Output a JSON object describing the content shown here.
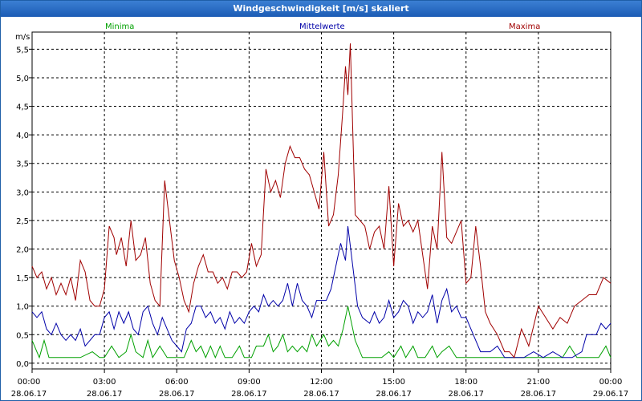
{
  "window": {
    "title": "Windgeschwindigkeit [m/s] skaliert"
  },
  "chart_data": {
    "type": "line",
    "ylabel": "m/s",
    "ylim": [
      -0.1,
      5.8
    ],
    "yticks": [
      "0,0",
      "0,5",
      "1,0",
      "1,5",
      "2,0",
      "2,5",
      "3,0",
      "3,5",
      "4,0",
      "4,5",
      "5,0",
      "5,5"
    ],
    "xticks": [
      {
        "time": "00:00",
        "date": "28.06.17"
      },
      {
        "time": "03:00",
        "date": "28.06.17"
      },
      {
        "time": "06:00",
        "date": "28.06.17"
      },
      {
        "time": "09:00",
        "date": "28.06.17"
      },
      {
        "time": "12:00",
        "date": "28.06.17"
      },
      {
        "time": "15:00",
        "date": "28.06.17"
      },
      {
        "time": "18:00",
        "date": "28.06.17"
      },
      {
        "time": "21:00",
        "date": "28.06.17"
      },
      {
        "time": "00:00",
        "date": "29.06.17"
      }
    ],
    "x_hours_range": [
      0,
      24
    ],
    "series": [
      {
        "name": "Minima",
        "color": "#00a000",
        "points": [
          [
            0,
            0.4
          ],
          [
            0.3,
            0.1
          ],
          [
            0.5,
            0.4
          ],
          [
            0.7,
            0.1
          ],
          [
            1,
            0.1
          ],
          [
            1.5,
            0.1
          ],
          [
            2,
            0.1
          ],
          [
            2.5,
            0.2
          ],
          [
            2.8,
            0.1
          ],
          [
            3,
            0.1
          ],
          [
            3.3,
            0.3
          ],
          [
            3.6,
            0.1
          ],
          [
            3.9,
            0.2
          ],
          [
            4.1,
            0.5
          ],
          [
            4.3,
            0.2
          ],
          [
            4.6,
            0.1
          ],
          [
            4.8,
            0.4
          ],
          [
            5.0,
            0.1
          ],
          [
            5.3,
            0.3
          ],
          [
            5.6,
            0.1
          ],
          [
            6.0,
            0.1
          ],
          [
            6.3,
            0.1
          ],
          [
            6.6,
            0.4
          ],
          [
            6.8,
            0.2
          ],
          [
            7.0,
            0.3
          ],
          [
            7.2,
            0.1
          ],
          [
            7.4,
            0.3
          ],
          [
            7.6,
            0.1
          ],
          [
            7.8,
            0.3
          ],
          [
            8.0,
            0.1
          ],
          [
            8.3,
            0.1
          ],
          [
            8.6,
            0.3
          ],
          [
            8.8,
            0.1
          ],
          [
            9.1,
            0.1
          ],
          [
            9.3,
            0.3
          ],
          [
            9.6,
            0.3
          ],
          [
            9.8,
            0.5
          ],
          [
            10.0,
            0.2
          ],
          [
            10.2,
            0.3
          ],
          [
            10.4,
            0.5
          ],
          [
            10.6,
            0.2
          ],
          [
            10.8,
            0.3
          ],
          [
            11.0,
            0.2
          ],
          [
            11.2,
            0.3
          ],
          [
            11.4,
            0.2
          ],
          [
            11.6,
            0.5
          ],
          [
            11.8,
            0.3
          ],
          [
            12.1,
            0.5
          ],
          [
            12.3,
            0.3
          ],
          [
            12.5,
            0.4
          ],
          [
            12.7,
            0.3
          ],
          [
            12.9,
            0.6
          ],
          [
            13.1,
            1.0
          ],
          [
            13.4,
            0.4
          ],
          [
            13.7,
            0.1
          ],
          [
            14.0,
            0.1
          ],
          [
            14.5,
            0.1
          ],
          [
            14.8,
            0.2
          ],
          [
            15.0,
            0.1
          ],
          [
            15.3,
            0.3
          ],
          [
            15.5,
            0.1
          ],
          [
            15.8,
            0.3
          ],
          [
            16.0,
            0.1
          ],
          [
            16.3,
            0.1
          ],
          [
            16.6,
            0.3
          ],
          [
            16.8,
            0.1
          ],
          [
            17.0,
            0.2
          ],
          [
            17.3,
            0.3
          ],
          [
            17.6,
            0.1
          ],
          [
            17.9,
            0.1
          ],
          [
            18.2,
            0.1
          ],
          [
            18.5,
            0.1
          ],
          [
            19,
            0.1
          ],
          [
            19.5,
            0.1
          ],
          [
            20,
            0.1
          ],
          [
            20.5,
            0.1
          ],
          [
            21,
            0.1
          ],
          [
            21.5,
            0.1
          ],
          [
            22,
            0.1
          ],
          [
            22.3,
            0.3
          ],
          [
            22.6,
            0.1
          ],
          [
            23,
            0.1
          ],
          [
            23.5,
            0.1
          ],
          [
            23.8,
            0.3
          ],
          [
            24,
            0.1
          ]
        ]
      },
      {
        "name": "Mittelwerte",
        "color": "#0000a8",
        "points": [
          [
            0,
            0.9
          ],
          [
            0.2,
            0.8
          ],
          [
            0.4,
            0.9
          ],
          [
            0.6,
            0.6
          ],
          [
            0.8,
            0.5
          ],
          [
            1.0,
            0.7
          ],
          [
            1.2,
            0.5
          ],
          [
            1.4,
            0.4
          ],
          [
            1.6,
            0.5
          ],
          [
            1.8,
            0.4
          ],
          [
            2.0,
            0.6
          ],
          [
            2.2,
            0.3
          ],
          [
            2.4,
            0.4
          ],
          [
            2.6,
            0.5
          ],
          [
            2.8,
            0.5
          ],
          [
            3.0,
            0.8
          ],
          [
            3.2,
            0.9
          ],
          [
            3.4,
            0.6
          ],
          [
            3.6,
            0.9
          ],
          [
            3.8,
            0.7
          ],
          [
            4.0,
            0.9
          ],
          [
            4.2,
            0.6
          ],
          [
            4.4,
            0.5
          ],
          [
            4.6,
            0.9
          ],
          [
            4.8,
            1.0
          ],
          [
            5.0,
            0.7
          ],
          [
            5.2,
            0.5
          ],
          [
            5.4,
            0.8
          ],
          [
            5.6,
            0.6
          ],
          [
            5.8,
            0.4
          ],
          [
            6.0,
            0.3
          ],
          [
            6.2,
            0.2
          ],
          [
            6.4,
            0.6
          ],
          [
            6.6,
            0.7
          ],
          [
            6.8,
            1.0
          ],
          [
            7.0,
            1.0
          ],
          [
            7.2,
            0.8
          ],
          [
            7.4,
            0.9
          ],
          [
            7.6,
            0.7
          ],
          [
            7.8,
            0.8
          ],
          [
            8.0,
            0.6
          ],
          [
            8.2,
            0.9
          ],
          [
            8.4,
            0.7
          ],
          [
            8.6,
            0.8
          ],
          [
            8.8,
            0.7
          ],
          [
            9.0,
            0.9
          ],
          [
            9.2,
            1.0
          ],
          [
            9.4,
            0.9
          ],
          [
            9.6,
            1.2
          ],
          [
            9.8,
            1.0
          ],
          [
            10.0,
            1.1
          ],
          [
            10.2,
            1.0
          ],
          [
            10.4,
            1.1
          ],
          [
            10.6,
            1.4
          ],
          [
            10.8,
            1.0
          ],
          [
            11.0,
            1.4
          ],
          [
            11.2,
            1.1
          ],
          [
            11.4,
            1.0
          ],
          [
            11.6,
            0.8
          ],
          [
            11.8,
            1.1
          ],
          [
            12.0,
            1.1
          ],
          [
            12.2,
            1.1
          ],
          [
            12.4,
            1.3
          ],
          [
            12.6,
            1.7
          ],
          [
            12.8,
            2.1
          ],
          [
            13.0,
            1.8
          ],
          [
            13.1,
            2.4
          ],
          [
            13.3,
            1.7
          ],
          [
            13.5,
            1.0
          ],
          [
            13.7,
            0.8
          ],
          [
            14.0,
            0.7
          ],
          [
            14.2,
            0.9
          ],
          [
            14.4,
            0.7
          ],
          [
            14.6,
            0.8
          ],
          [
            14.8,
            1.1
          ],
          [
            15.0,
            0.8
          ],
          [
            15.2,
            0.9
          ],
          [
            15.4,
            1.1
          ],
          [
            15.6,
            1.0
          ],
          [
            15.8,
            0.7
          ],
          [
            16.0,
            0.9
          ],
          [
            16.2,
            0.8
          ],
          [
            16.4,
            0.9
          ],
          [
            16.6,
            1.2
          ],
          [
            16.8,
            0.7
          ],
          [
            17.0,
            1.1
          ],
          [
            17.2,
            1.3
          ],
          [
            17.4,
            0.9
          ],
          [
            17.6,
            1.0
          ],
          [
            17.8,
            0.8
          ],
          [
            18.0,
            0.8
          ],
          [
            18.2,
            0.6
          ],
          [
            18.4,
            0.4
          ],
          [
            18.6,
            0.2
          ],
          [
            18.8,
            0.2
          ],
          [
            19.0,
            0.2
          ],
          [
            19.3,
            0.3
          ],
          [
            19.6,
            0.1
          ],
          [
            20.0,
            0.1
          ],
          [
            20.4,
            0.1
          ],
          [
            20.8,
            0.2
          ],
          [
            21.2,
            0.1
          ],
          [
            21.6,
            0.2
          ],
          [
            22.0,
            0.1
          ],
          [
            22.4,
            0.1
          ],
          [
            22.8,
            0.2
          ],
          [
            23.0,
            0.5
          ],
          [
            23.2,
            0.5
          ],
          [
            23.4,
            0.5
          ],
          [
            23.6,
            0.7
          ],
          [
            23.8,
            0.6
          ],
          [
            24,
            0.7
          ]
        ]
      },
      {
        "name": "Maxima",
        "color": "#a00000",
        "points": [
          [
            0,
            1.7
          ],
          [
            0.2,
            1.5
          ],
          [
            0.4,
            1.6
          ],
          [
            0.6,
            1.3
          ],
          [
            0.8,
            1.5
          ],
          [
            1.0,
            1.2
          ],
          [
            1.2,
            1.4
          ],
          [
            1.4,
            1.2
          ],
          [
            1.6,
            1.5
          ],
          [
            1.8,
            1.1
          ],
          [
            2.0,
            1.8
          ],
          [
            2.2,
            1.6
          ],
          [
            2.4,
            1.1
          ],
          [
            2.6,
            1.0
          ],
          [
            2.8,
            1.0
          ],
          [
            3.0,
            1.3
          ],
          [
            3.2,
            2.4
          ],
          [
            3.4,
            2.2
          ],
          [
            3.5,
            1.9
          ],
          [
            3.7,
            2.2
          ],
          [
            3.9,
            1.7
          ],
          [
            4.1,
            2.5
          ],
          [
            4.3,
            1.8
          ],
          [
            4.5,
            1.9
          ],
          [
            4.7,
            2.2
          ],
          [
            4.9,
            1.4
          ],
          [
            5.1,
            1.1
          ],
          [
            5.3,
            1.0
          ],
          [
            5.5,
            3.2
          ],
          [
            5.7,
            2.5
          ],
          [
            5.9,
            1.8
          ],
          [
            6.1,
            1.5
          ],
          [
            6.3,
            1.1
          ],
          [
            6.5,
            0.9
          ],
          [
            6.7,
            1.4
          ],
          [
            6.9,
            1.7
          ],
          [
            7.1,
            1.9
          ],
          [
            7.3,
            1.6
          ],
          [
            7.5,
            1.6
          ],
          [
            7.7,
            1.4
          ],
          [
            7.9,
            1.5
          ],
          [
            8.1,
            1.3
          ],
          [
            8.3,
            1.6
          ],
          [
            8.5,
            1.6
          ],
          [
            8.7,
            1.5
          ],
          [
            8.9,
            1.6
          ],
          [
            9.1,
            2.1
          ],
          [
            9.3,
            1.7
          ],
          [
            9.5,
            1.9
          ],
          [
            9.7,
            3.4
          ],
          [
            9.9,
            3.0
          ],
          [
            10.1,
            3.2
          ],
          [
            10.3,
            2.9
          ],
          [
            10.5,
            3.5
          ],
          [
            10.7,
            3.8
          ],
          [
            10.9,
            3.6
          ],
          [
            11.1,
            3.6
          ],
          [
            11.3,
            3.4
          ],
          [
            11.5,
            3.3
          ],
          [
            11.7,
            3.0
          ],
          [
            11.9,
            2.7
          ],
          [
            12.1,
            3.7
          ],
          [
            12.3,
            2.4
          ],
          [
            12.5,
            2.6
          ],
          [
            12.7,
            3.3
          ],
          [
            12.9,
            4.5
          ],
          [
            13.0,
            5.2
          ],
          [
            13.1,
            4.7
          ],
          [
            13.2,
            5.6
          ],
          [
            13.4,
            2.6
          ],
          [
            13.6,
            2.5
          ],
          [
            13.8,
            2.4
          ],
          [
            14.0,
            2.0
          ],
          [
            14.2,
            2.3
          ],
          [
            14.4,
            2.4
          ],
          [
            14.6,
            2.0
          ],
          [
            14.8,
            3.1
          ],
          [
            15.0,
            1.7
          ],
          [
            15.2,
            2.8
          ],
          [
            15.4,
            2.4
          ],
          [
            15.6,
            2.5
          ],
          [
            15.8,
            2.3
          ],
          [
            16.0,
            2.5
          ],
          [
            16.2,
            1.9
          ],
          [
            16.4,
            1.3
          ],
          [
            16.6,
            2.4
          ],
          [
            16.8,
            2.0
          ],
          [
            17.0,
            3.7
          ],
          [
            17.2,
            2.2
          ],
          [
            17.4,
            2.1
          ],
          [
            17.6,
            2.3
          ],
          [
            17.8,
            2.5
          ],
          [
            18.0,
            1.4
          ],
          [
            18.2,
            1.5
          ],
          [
            18.4,
            2.4
          ],
          [
            18.6,
            1.7
          ],
          [
            18.8,
            0.9
          ],
          [
            19.0,
            0.7
          ],
          [
            19.3,
            0.5
          ],
          [
            19.6,
            0.2
          ],
          [
            19.8,
            0.2
          ],
          [
            20.0,
            0.1
          ],
          [
            20.3,
            0.6
          ],
          [
            20.6,
            0.3
          ],
          [
            21.0,
            1.0
          ],
          [
            21.3,
            0.8
          ],
          [
            21.6,
            0.6
          ],
          [
            21.9,
            0.8
          ],
          [
            22.2,
            0.7
          ],
          [
            22.5,
            1.0
          ],
          [
            22.8,
            1.1
          ],
          [
            23.1,
            1.2
          ],
          [
            23.4,
            1.2
          ],
          [
            23.7,
            1.5
          ],
          [
            24.0,
            1.4
          ]
        ]
      }
    ]
  }
}
